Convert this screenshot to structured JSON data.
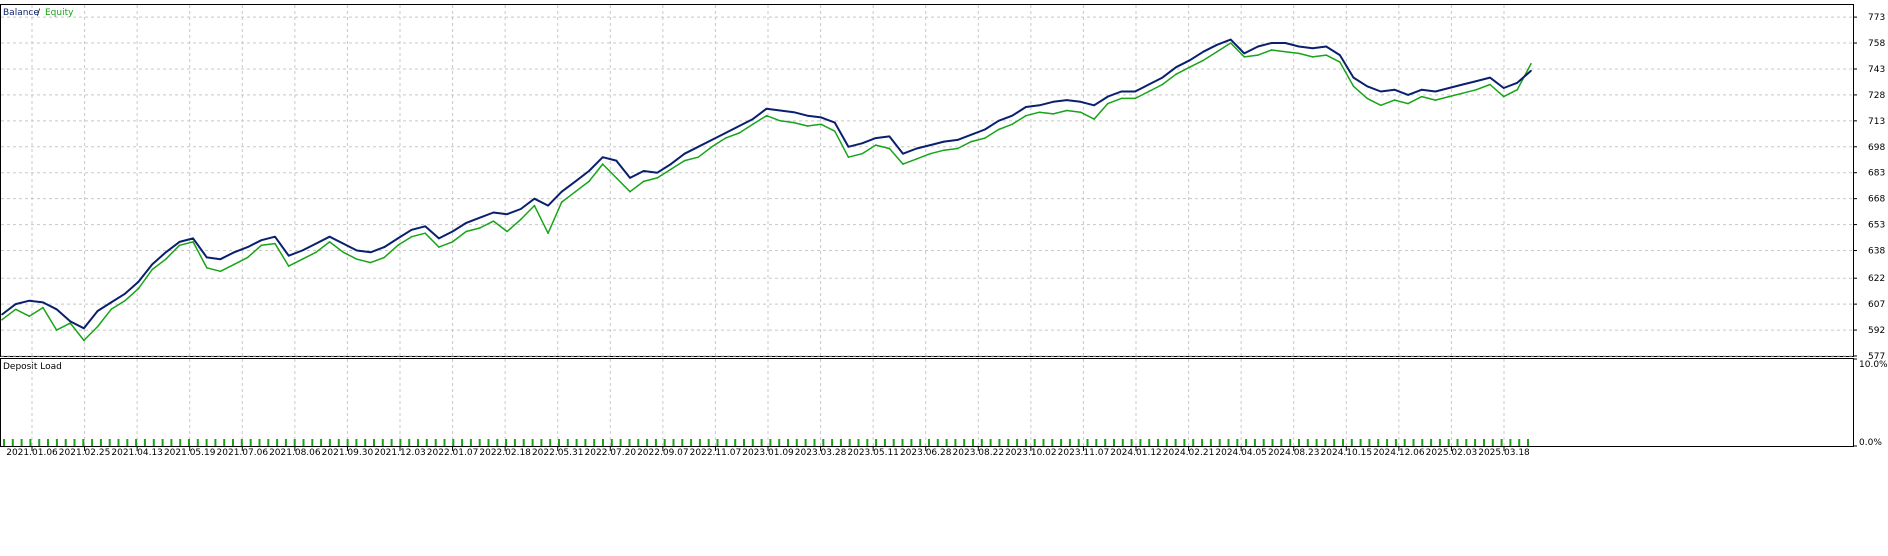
{
  "chart_data": [
    {
      "type": "line",
      "title": "",
      "legend": {
        "balance_label": "Balance",
        "separator": " / ",
        "equity_label": "Equity",
        "placement": "top-left"
      },
      "colors": {
        "balance": "#0a1f6e",
        "equity": "#18a418",
        "grid": "#c8c8c8"
      },
      "grid": true,
      "ylim": [
        577,
        780
      ],
      "y_ticks": [
        773,
        758,
        743,
        728,
        713,
        698,
        683,
        668,
        653,
        638,
        622,
        607,
        592,
        577
      ],
      "x_ticks": [
        "2021.01.06",
        "2021.02.25",
        "2021.04.13",
        "2021.05.19",
        "2021.07.06",
        "2021.08.06",
        "2021.09.30",
        "2021.12.03",
        "2022.01.07",
        "2022.02.18",
        "2022.05.31",
        "2022.07.20",
        "2022.09.07",
        "2022.11.07",
        "2023.01.09",
        "2023.03.28",
        "2023.05.11",
        "2023.06.28",
        "2023.08.22",
        "2023.10.02",
        "2023.11.07",
        "2024.01.12",
        "2024.02.21",
        "2024.04.05",
        "2024.08.23",
        "2024.10.15",
        "2024.12.06",
        "2025.02.03",
        "2025.03.18"
      ],
      "series": [
        {
          "name": "Balance",
          "x": [
            0,
            1,
            2,
            3,
            4,
            5,
            6,
            7,
            8,
            9,
            10,
            11,
            12,
            13,
            14,
            15,
            16,
            17,
            18,
            19,
            20,
            21,
            22,
            23,
            24,
            25,
            26,
            27,
            28,
            29,
            30,
            31,
            32,
            33,
            34,
            35,
            36,
            37,
            38,
            39,
            40,
            41,
            42,
            43,
            44,
            45,
            46,
            47,
            48,
            49,
            50,
            51,
            52,
            53,
            54,
            55,
            56,
            57,
            58,
            59,
            60,
            61,
            62,
            63,
            64,
            65,
            66,
            67,
            68,
            69,
            70,
            71,
            72,
            73,
            74,
            75,
            76,
            77,
            78,
            79,
            80,
            81,
            82,
            83,
            84,
            85,
            86,
            87,
            88,
            89,
            90,
            91,
            92,
            93,
            94,
            95,
            96,
            97,
            98,
            99,
            100,
            101,
            102,
            103,
            104,
            105,
            106,
            107,
            108,
            109,
            110,
            111,
            112
          ],
          "values": [
            601,
            607,
            609,
            608,
            604,
            597,
            593,
            603,
            608,
            613,
            620,
            630,
            637,
            643,
            645,
            634,
            633,
            637,
            640,
            644,
            646,
            635,
            638,
            642,
            646,
            642,
            638,
            637,
            640,
            645,
            650,
            652,
            645,
            649,
            654,
            657,
            660,
            659,
            662,
            668,
            664,
            672,
            678,
            684,
            692,
            690,
            680,
            684,
            683,
            688,
            694,
            698,
            702,
            706,
            710,
            714,
            720,
            719,
            718,
            716,
            715,
            712,
            698,
            700,
            703,
            704,
            694,
            697,
            699,
            701,
            702,
            705,
            708,
            713,
            716,
            721,
            722,
            724,
            725,
            724,
            722,
            727,
            730,
            730,
            734,
            738,
            744,
            748,
            753,
            757,
            760,
            752,
            756,
            758,
            758,
            756,
            755,
            756,
            751,
            738,
            733,
            730,
            731,
            728,
            731,
            730,
            732,
            734,
            736,
            738,
            732,
            735,
            742
          ]
        },
        {
          "name": "Equity",
          "x": [
            0,
            1,
            2,
            3,
            4,
            5,
            6,
            7,
            8,
            9,
            10,
            11,
            12,
            13,
            14,
            15,
            16,
            17,
            18,
            19,
            20,
            21,
            22,
            23,
            24,
            25,
            26,
            27,
            28,
            29,
            30,
            31,
            32,
            33,
            34,
            35,
            36,
            37,
            38,
            39,
            40,
            41,
            42,
            43,
            44,
            45,
            46,
            47,
            48,
            49,
            50,
            51,
            52,
            53,
            54,
            55,
            56,
            57,
            58,
            59,
            60,
            61,
            62,
            63,
            64,
            65,
            66,
            67,
            68,
            69,
            70,
            71,
            72,
            73,
            74,
            75,
            76,
            77,
            78,
            79,
            80,
            81,
            82,
            83,
            84,
            85,
            86,
            87,
            88,
            89,
            90,
            91,
            92,
            93,
            94,
            95,
            96,
            97,
            98,
            99,
            100,
            101,
            102,
            103,
            104,
            105,
            106,
            107,
            108,
            109,
            110,
            111,
            112
          ],
          "values": [
            598,
            604,
            600,
            605,
            592,
            596,
            586,
            594,
            604,
            609,
            616,
            627,
            633,
            641,
            643,
            628,
            626,
            630,
            634,
            641,
            642,
            629,
            633,
            637,
            643,
            637,
            633,
            631,
            634,
            641,
            646,
            648,
            640,
            643,
            649,
            651,
            655,
            649,
            656,
            664,
            648,
            666,
            672,
            678,
            688,
            680,
            672,
            678,
            680,
            685,
            690,
            692,
            698,
            703,
            706,
            711,
            716,
            713,
            712,
            710,
            711,
            707,
            692,
            694,
            699,
            697,
            688,
            691,
            694,
            696,
            697,
            701,
            703,
            708,
            711,
            716,
            718,
            717,
            719,
            718,
            714,
            723,
            726,
            726,
            730,
            734,
            740,
            744,
            748,
            753,
            758,
            750,
            751,
            754,
            753,
            752,
            750,
            751,
            747,
            733,
            726,
            722,
            725,
            723,
            727,
            725,
            727,
            729,
            731,
            734,
            727,
            731,
            746
          ]
        }
      ]
    },
    {
      "type": "bar",
      "title": "Deposit Load",
      "ylim": [
        0,
        10
      ],
      "y_ticks": [
        "10.0%",
        "0.0%"
      ],
      "y_tick_values": [
        10,
        0
      ],
      "colors": {
        "bars": "#18a418"
      },
      "values": [
        0.8,
        0.8,
        0.8,
        0.8,
        0.8,
        0.8,
        0.8,
        0.8,
        0.8,
        0.8,
        0.8,
        0.8,
        0.8,
        0.8,
        0.8,
        0.8,
        0.8,
        0.8,
        0.8,
        0.8,
        0.8,
        0.8,
        0.8,
        0.8,
        0.8,
        0.8,
        0.8,
        0.8,
        0.8,
        0.8,
        0.8,
        0.8,
        0.8,
        0.8,
        0.8,
        0.8,
        0.8,
        0.8,
        0.8,
        0.8,
        0.8,
        0.8,
        0.8,
        0.8,
        0.8,
        0.8,
        0.8,
        0.8,
        0.8,
        0.8,
        0.8,
        0.8,
        0.8,
        0.8,
        0.8,
        0.8,
        0.8,
        0.8,
        0.8,
        0.8,
        0.8,
        0.8,
        0.8,
        0.8,
        0.8,
        0.8,
        0.8,
        0.8,
        0.8,
        0.8,
        0.8,
        0.8,
        0.8,
        0.8,
        0.8,
        0.8,
        0.8,
        0.8,
        0.8,
        0.8,
        0.8,
        0.8,
        0.8,
        0.8,
        0.8,
        0.8,
        0.8,
        0.8,
        0.8,
        0.8,
        0.8,
        0.8,
        0.8,
        0.8,
        0.8,
        0.8,
        0.8,
        0.8,
        0.8,
        0.8,
        0.8,
        0.8,
        0.8,
        0.8,
        0.8,
        0.8,
        0.8,
        0.8,
        0.8,
        0.8,
        0.8,
        0.8,
        0.8,
        0.8,
        0.8,
        0.8,
        0.8,
        0.8,
        0.8,
        0.8,
        0.8,
        0.8,
        0.8,
        0.8,
        0.8,
        0.8,
        0.8,
        0.8,
        0.8,
        0.8,
        0.8,
        0.8,
        0.8,
        0.8,
        0.8,
        0.8,
        0.8,
        0.8,
        0.8,
        0.8,
        0.8,
        0.8,
        0.8,
        0.8,
        0.8,
        0.8,
        0.8,
        0.8,
        0.8,
        0.8,
        0.8,
        0.8,
        0.8,
        0.8,
        0.8,
        0.8,
        0.8,
        0.8,
        0.8,
        0.8,
        0.8,
        0.8,
        0.8,
        0.8,
        0.8,
        0.8,
        0.8,
        0.8,
        0.8,
        0.8,
        0.8,
        0.8,
        0.8,
        0.8
      ]
    }
  ]
}
